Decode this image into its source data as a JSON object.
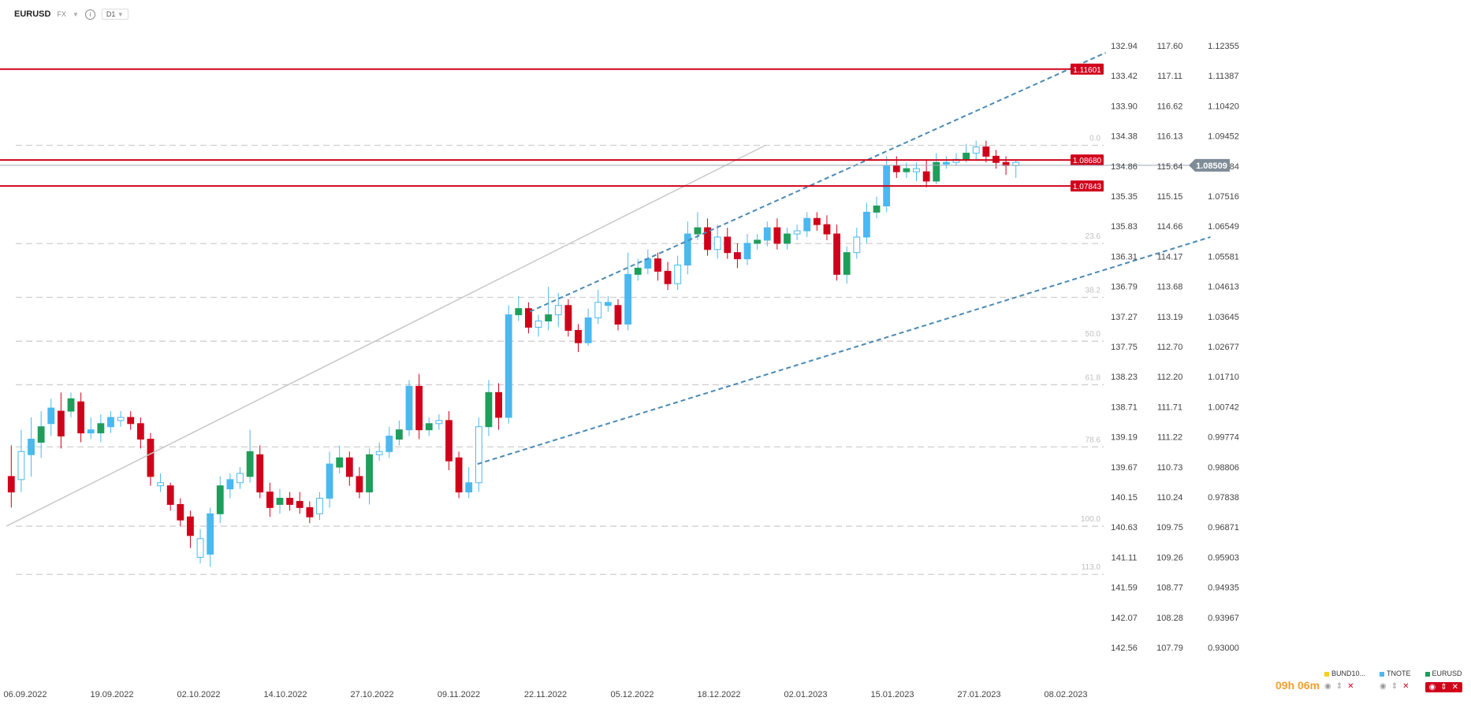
{
  "toolbar": {
    "symbol": "EURUSD",
    "market": "FX",
    "timeframe": "D1"
  },
  "countdown": "09h 06m",
  "colors": {
    "up": "#1e9e5a",
    "down": "#d0021b",
    "hollow_stroke": "#4bb8f0",
    "level": "#d0021b",
    "channel": "#4a8ab5"
  },
  "legend": [
    {
      "name": "BUND10...",
      "color": "#f5d020"
    },
    {
      "name": "TNOTE",
      "color": "#4bb8f0"
    },
    {
      "name": "EURUSD",
      "color": "#1e9e5a"
    }
  ],
  "chart_data": {
    "type": "candlestick",
    "x_labels": [
      "06.09.2022",
      "19.09.2022",
      "02.10.2022",
      "14.10.2022",
      "27.10.2022",
      "09.11.2022",
      "22.11.2022",
      "05.12.2022",
      "18.12.2022",
      "02.01.2023",
      "15.01.2023",
      "27.01.2023",
      "08.02.2023"
    ],
    "price_axis_1": [
      "132.94",
      "133.42",
      "133.90",
      "134.38",
      "134.86",
      "135.35",
      "135.83",
      "136.31",
      "136.79",
      "137.27",
      "137.75",
      "138.23",
      "138.71",
      "139.19",
      "139.67",
      "140.15",
      "140.63",
      "141.11",
      "141.59",
      "142.07",
      "142.56"
    ],
    "price_axis_2": [
      "117.60",
      "117.11",
      "116.62",
      "116.13",
      "115.64",
      "115.15",
      "114.66",
      "114.17",
      "113.68",
      "113.19",
      "112.70",
      "112.20",
      "111.71",
      "111.22",
      "110.73",
      "110.24",
      "109.75",
      "109.26",
      "108.77",
      "108.28",
      "107.79"
    ],
    "price_axis_3": [
      "1.12355",
      "1.11387",
      "1.10420",
      "1.09452",
      "1.08484",
      "1.07516",
      "1.06549",
      "1.05581",
      "1.04613",
      "1.03645",
      "1.02677",
      "1.01710",
      "1.00742",
      "0.99774",
      "0.98806",
      "0.97838",
      "0.96871",
      "0.95903",
      "0.94935",
      "0.93967",
      "0.93000"
    ],
    "price_range": [
      0.93,
      1.12355
    ],
    "current_price": "1.08509",
    "levels": [
      {
        "label": "1.11601",
        "value": 1.11601
      },
      {
        "label": "1.08680",
        "value": 1.0868
      },
      {
        "label": "1.07843",
        "value": 1.07843
      }
    ],
    "fib_levels": [
      {
        "label": "0.0",
        "value": 1.0915
      },
      {
        "label": "23.6",
        "value": 1.0599
      },
      {
        "label": "38.2",
        "value": 1.0426
      },
      {
        "label": "50.0",
        "value": 1.0285
      },
      {
        "label": "61.8",
        "value": 1.0145
      },
      {
        "label": "78.6",
        "value": 0.9945
      },
      {
        "label": "100.0",
        "value": 0.969
      },
      {
        "label": "113.0",
        "value": 0.9535
      }
    ],
    "candles": [
      [
        1,
        0.985,
        0.98,
        0.995,
        0.975
      ],
      [
        0,
        0.984,
        0.993,
        1.0,
        0.98
      ],
      [
        0,
        0.992,
        0.997,
        1.004,
        0.985
      ],
      [
        0,
        0.996,
        1.001,
        1.006,
        0.991
      ],
      [
        0,
        1.002,
        1.007,
        1.01,
        0.998
      ],
      [
        1,
        1.006,
        0.998,
        1.012,
        0.994
      ],
      [
        0,
        1.006,
        1.01,
        1.012,
        1.004
      ],
      [
        1,
        1.009,
        0.999,
        1.012,
        0.996
      ],
      [
        0,
        0.999,
        1.0,
        1.004,
        0.997
      ],
      [
        0,
        0.999,
        1.002,
        1.005,
        0.996
      ],
      [
        0,
        1.001,
        1.004,
        1.006,
        0.999
      ],
      [
        0,
        1.003,
        1.004,
        1.006,
        1.001
      ],
      [
        1,
        1.004,
        1.002,
        1.006,
        1.0
      ],
      [
        1,
        1.002,
        0.997,
        1.004,
        0.994
      ],
      [
        1,
        0.997,
        0.985,
        0.999,
        0.982
      ],
      [
        0,
        0.983,
        0.982,
        0.986,
        0.98
      ],
      [
        1,
        0.982,
        0.976,
        0.983,
        0.974
      ],
      [
        1,
        0.976,
        0.971,
        0.978,
        0.969
      ],
      [
        1,
        0.972,
        0.966,
        0.974,
        0.962
      ],
      [
        0,
        0.965,
        0.959,
        0.968,
        0.957
      ],
      [
        0,
        0.96,
        0.973,
        0.975,
        0.956
      ],
      [
        0,
        0.973,
        0.982,
        0.985,
        0.97
      ],
      [
        0,
        0.981,
        0.984,
        0.986,
        0.978
      ],
      [
        0,
        0.983,
        0.986,
        0.988,
        0.981
      ],
      [
        0,
        0.985,
        0.993,
        1.0,
        0.983
      ],
      [
        1,
        0.992,
        0.98,
        0.995,
        0.978
      ],
      [
        1,
        0.98,
        0.975,
        0.983,
        0.972
      ],
      [
        0,
        0.976,
        0.978,
        0.981,
        0.973
      ],
      [
        1,
        0.978,
        0.976,
        0.98,
        0.974
      ],
      [
        1,
        0.977,
        0.975,
        0.98,
        0.973
      ],
      [
        1,
        0.975,
        0.972,
        0.977,
        0.97
      ],
      [
        0,
        0.973,
        0.978,
        0.98,
        0.971
      ],
      [
        0,
        0.978,
        0.989,
        0.993,
        0.975
      ],
      [
        0,
        0.988,
        0.991,
        0.995,
        0.986
      ],
      [
        1,
        0.991,
        0.985,
        0.993,
        0.982
      ],
      [
        1,
        0.985,
        0.98,
        0.988,
        0.978
      ],
      [
        0,
        0.98,
        0.992,
        0.994,
        0.976
      ],
      [
        0,
        0.992,
        0.993,
        0.996,
        0.99
      ],
      [
        0,
        0.993,
        0.998,
        1.001,
        0.991
      ],
      [
        0,
        0.997,
        1.0,
        1.003,
        0.995
      ],
      [
        0,
        1.0,
        1.014,
        1.016,
        0.998
      ],
      [
        1,
        1.014,
        1.0,
        1.018,
        0.997
      ],
      [
        0,
        1.0,
        1.002,
        1.004,
        0.998
      ],
      [
        0,
        1.002,
        1.003,
        1.005,
        1.0
      ],
      [
        1,
        1.003,
        0.99,
        1.006,
        0.987
      ],
      [
        1,
        0.991,
        0.98,
        0.993,
        0.978
      ],
      [
        0,
        0.98,
        0.983,
        0.988,
        0.978
      ],
      [
        0,
        0.983,
        1.001,
        1.004,
        0.98
      ],
      [
        0,
        1.001,
        1.012,
        1.016,
        0.998
      ],
      [
        1,
        1.012,
        1.004,
        1.015,
        1.0
      ],
      [
        0,
        1.004,
        1.037,
        1.04,
        1.002
      ],
      [
        0,
        1.037,
        1.039,
        1.043,
        1.035
      ],
      [
        1,
        1.039,
        1.033,
        1.041,
        1.031
      ],
      [
        0,
        1.033,
        1.035,
        1.037,
        1.03
      ],
      [
        0,
        1.035,
        1.037,
        1.046,
        1.032
      ],
      [
        0,
        1.037,
        1.04,
        1.044,
        1.033
      ],
      [
        1,
        1.04,
        1.032,
        1.042,
        1.03
      ],
      [
        1,
        1.032,
        1.028,
        1.034,
        1.025
      ],
      [
        0,
        1.028,
        1.036,
        1.039,
        1.027
      ],
      [
        0,
        1.036,
        1.041,
        1.045,
        1.034
      ],
      [
        0,
        1.041,
        1.04,
        1.043,
        1.038
      ],
      [
        1,
        1.04,
        1.034,
        1.042,
        1.032
      ],
      [
        0,
        1.034,
        1.05,
        1.057,
        1.032
      ],
      [
        0,
        1.05,
        1.052,
        1.055,
        1.048
      ],
      [
        0,
        1.052,
        1.055,
        1.058,
        1.05
      ],
      [
        1,
        1.055,
        1.051,
        1.057,
        1.048
      ],
      [
        1,
        1.051,
        1.047,
        1.054,
        1.045
      ],
      [
        0,
        1.047,
        1.053,
        1.056,
        1.045
      ],
      [
        0,
        1.053,
        1.063,
        1.067,
        1.05
      ],
      [
        0,
        1.063,
        1.065,
        1.07,
        1.061
      ],
      [
        1,
        1.065,
        1.058,
        1.068,
        1.056
      ],
      [
        0,
        1.058,
        1.062,
        1.066,
        1.055
      ],
      [
        1,
        1.062,
        1.057,
        1.065,
        1.055
      ],
      [
        1,
        1.057,
        1.055,
        1.06,
        1.052
      ],
      [
        0,
        1.055,
        1.06,
        1.063,
        1.053
      ],
      [
        0,
        1.06,
        1.061,
        1.063,
        1.058
      ],
      [
        0,
        1.061,
        1.065,
        1.067,
        1.059
      ],
      [
        1,
        1.065,
        1.06,
        1.068,
        1.058
      ],
      [
        0,
        1.06,
        1.063,
        1.065,
        1.058
      ],
      [
        0,
        1.063,
        1.064,
        1.066,
        1.061
      ],
      [
        0,
        1.064,
        1.068,
        1.07,
        1.062
      ],
      [
        1,
        1.068,
        1.066,
        1.07,
        1.064
      ],
      [
        1,
        1.066,
        1.063,
        1.069,
        1.061
      ],
      [
        1,
        1.063,
        1.05,
        1.066,
        1.048
      ],
      [
        0,
        1.05,
        1.057,
        1.059,
        1.047
      ],
      [
        0,
        1.057,
        1.062,
        1.065,
        1.055
      ],
      [
        0,
        1.062,
        1.07,
        1.073,
        1.06
      ],
      [
        0,
        1.07,
        1.072,
        1.075,
        1.068
      ],
      [
        0,
        1.072,
        1.085,
        1.088,
        1.07
      ],
      [
        1,
        1.085,
        1.083,
        1.088,
        1.081
      ],
      [
        0,
        1.083,
        1.084,
        1.086,
        1.081
      ],
      [
        0,
        1.084,
        1.083,
        1.086,
        1.08
      ],
      [
        1,
        1.083,
        1.08,
        1.087,
        1.078
      ],
      [
        0,
        1.08,
        1.086,
        1.089,
        1.079
      ],
      [
        0,
        1.086,
        1.086,
        1.088,
        1.084
      ],
      [
        0,
        1.086,
        1.087,
        1.089,
        1.085
      ],
      [
        0,
        1.087,
        1.089,
        1.092,
        1.086
      ],
      [
        0,
        1.089,
        1.091,
        1.093,
        1.087
      ],
      [
        1,
        1.091,
        1.088,
        1.093,
        1.086
      ],
      [
        1,
        1.088,
        1.086,
        1.09,
        1.084
      ],
      [
        1,
        1.086,
        1.085,
        1.088,
        1.082
      ],
      [
        0,
        1.085,
        1.086,
        1.087,
        1.081
      ]
    ],
    "channel_lines": [
      [
        [
          0.0,
          0.969
        ],
        [
          0.58,
          1.0915
        ]
      ],
      [
        [
          0.36,
          0.989
        ],
        [
          0.92,
          1.062
        ]
      ],
      [
        [
          0.4,
          1.038
        ],
        [
          0.84,
          1.1213
        ]
      ]
    ]
  }
}
